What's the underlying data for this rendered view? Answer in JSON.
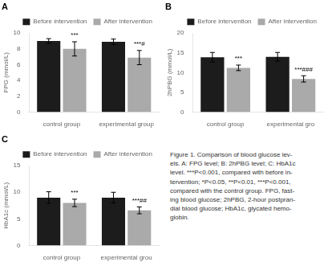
{
  "chart_data": [
    {
      "type": "bar",
      "title": "A",
      "y_label": "FPG (mmol/L)",
      "categories": [
        "control group",
        "experimental group"
      ],
      "series": [
        {
          "name": "Before intervention",
          "color": "#1c1c1c",
          "values": [
            9.0,
            8.9
          ],
          "errors": [
            0.3,
            0.35
          ]
        },
        {
          "name": "After intervention",
          "color": "#aaaaaa",
          "values": [
            8.0,
            6.9
          ],
          "errors": [
            0.9,
            0.9
          ],
          "annotations": [
            "***",
            "***#"
          ]
        }
      ],
      "ylim": [
        0,
        10
      ],
      "yticks": [
        0,
        2,
        4,
        6,
        8,
        10
      ],
      "grid": false,
      "legend": "upper right"
    },
    {
      "type": "bar",
      "title": "B",
      "y_label": "2hPBG (mmol/L)",
      "categories": [
        "control group",
        "experimental gro"
      ],
      "series": [
        {
          "name": "Before intervention",
          "color": "#1c1c1c",
          "values": [
            13.9,
            14.0
          ],
          "errors": [
            1.2,
            1.1
          ]
        },
        {
          "name": "After intervention",
          "color": "#aaaaaa",
          "values": [
            11.2,
            8.4
          ],
          "errors": [
            0.7,
            0.8
          ],
          "annotations": [
            "***",
            "***###"
          ]
        }
      ],
      "ylim": [
        0,
        20
      ],
      "yticks": [
        0,
        5,
        10,
        15,
        20
      ],
      "grid": false,
      "legend": "upper right"
    },
    {
      "type": "bar",
      "title": "C",
      "y_label": "HbA1c (mmol/L)",
      "categories": [
        "control group",
        "experimental grou"
      ],
      "series": [
        {
          "name": "Before intervention",
          "color": "#1c1c1c",
          "values": [
            9.0,
            9.0
          ],
          "errors": [
            1.1,
            1.0
          ]
        },
        {
          "name": "After intervention",
          "color": "#aaaaaa",
          "values": [
            8.0,
            6.6
          ],
          "errors": [
            0.7,
            0.65
          ],
          "annotations": [
            "***",
            "***##"
          ]
        }
      ],
      "ylim": [
        0,
        15
      ],
      "yticks": [
        0,
        5,
        10,
        15
      ],
      "grid": false,
      "legend": "upper right"
    }
  ],
  "caption": "Figure 1. Comparison of blood glucose lev-\nels. A: FPG level; B: 2hPBG level; C: HbA1c\nlevel. ***P<0.001, compared with before in-\ntervention; *P<0.05, **P<0.01, ***P<0.001,\ncompared with the control group. FPG, fast-\ning blood glucose; 2hPBG, 2-hour postpran-\ndial blood glucose; HbA1c, glycated hemo-\nglobin."
}
